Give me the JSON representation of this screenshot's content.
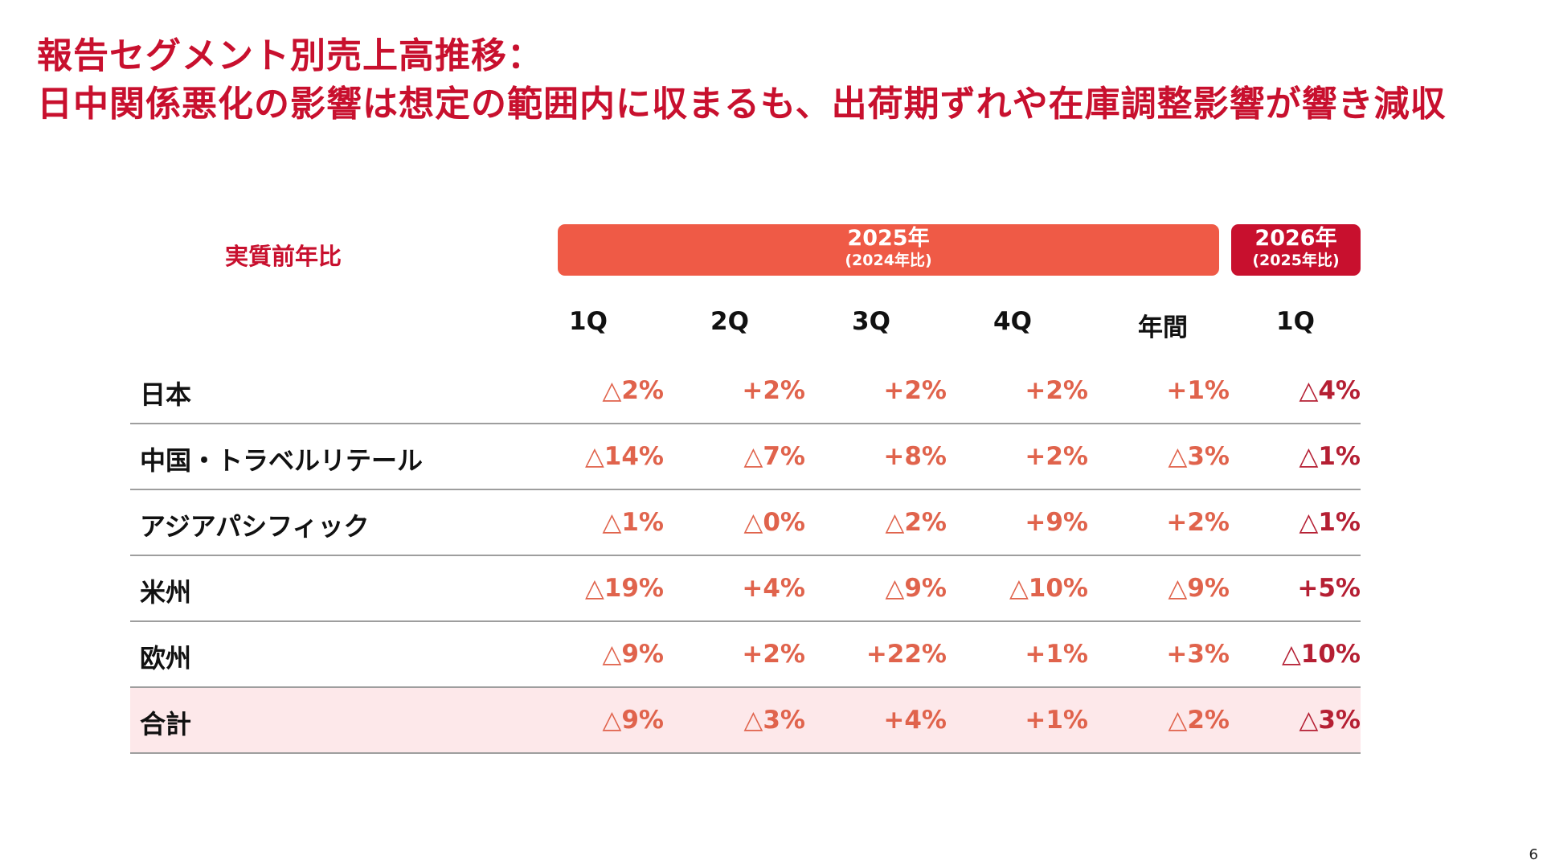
{
  "title": {
    "line1": "報告セグメント別売上高推移：",
    "line2": "日中関係悪化の影響は想定の範囲内に収まるも、出荷期ずれや在庫調整影響が響き減収"
  },
  "metric_label": "実質前年比",
  "bands": {
    "y2025": {
      "year": "2025年",
      "comparison": "(2024年比)",
      "color": "#ef5a46"
    },
    "y2026": {
      "year": "2026年",
      "comparison": "(2025年比)",
      "color": "#c8102e"
    }
  },
  "columns": [
    "1Q",
    "2Q",
    "3Q",
    "4Q",
    "年間",
    "1Q"
  ],
  "rows": [
    {
      "name": "日本",
      "values": [
        "△2%",
        "+2%",
        "+2%",
        "+2%",
        "+1%",
        "△4%"
      ]
    },
    {
      "name": "中国・トラベルリテール",
      "values": [
        "△14%",
        "△7%",
        "+8%",
        "+2%",
        "△3%",
        "△1%"
      ]
    },
    {
      "name": "アジアパシフィック",
      "values": [
        "△1%",
        "△0%",
        "△2%",
        "+9%",
        "+2%",
        "△1%"
      ]
    },
    {
      "name": "米州",
      "values": [
        "△19%",
        "+4%",
        "△9%",
        "△10%",
        "△9%",
        "+5%"
      ]
    },
    {
      "name": "欧州",
      "values": [
        "△9%",
        "+2%",
        "+22%",
        "+1%",
        "+3%",
        "△10%"
      ]
    },
    {
      "name": "合計",
      "values": [
        "△9%",
        "△3%",
        "+4%",
        "+1%",
        "△2%",
        "△3%"
      ]
    }
  ],
  "colors": {
    "title": "#c8102e",
    "value_2025": "#e0634c",
    "value_2026": "#b51f33",
    "total_row_bg": "#fde8ea"
  },
  "page_number": "6"
}
